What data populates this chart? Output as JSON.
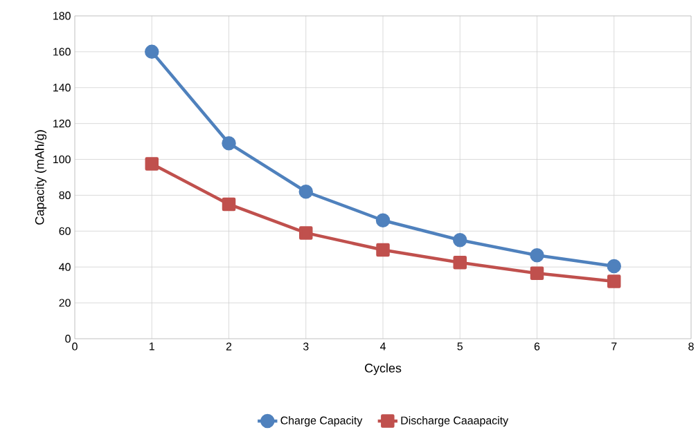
{
  "chart_data": {
    "type": "line",
    "xlabel": "Cycles",
    "ylabel": "Capacity (mAh/g)",
    "x": [
      1,
      2,
      3,
      4,
      5,
      6,
      7
    ],
    "series": [
      {
        "name": "Charge Capacity",
        "color": "#4f81bd",
        "marker": "circle",
        "values": [
          160,
          109,
          82,
          66,
          55,
          46.5,
          40.5
        ]
      },
      {
        "name": "Discharge Caaapacity",
        "color": "#c0504d",
        "marker": "square",
        "values": [
          97.5,
          75,
          59,
          49.5,
          42.5,
          36.5,
          32
        ]
      }
    ],
    "xlim": [
      0,
      8
    ],
    "xticks": [
      0,
      1,
      2,
      3,
      4,
      5,
      6,
      7,
      8
    ],
    "ylim": [
      0,
      180
    ],
    "yticks": [
      0,
      20,
      40,
      60,
      80,
      100,
      120,
      140,
      160,
      180
    ],
    "grid": true,
    "legend": "bottom",
    "line_style": "solid"
  }
}
